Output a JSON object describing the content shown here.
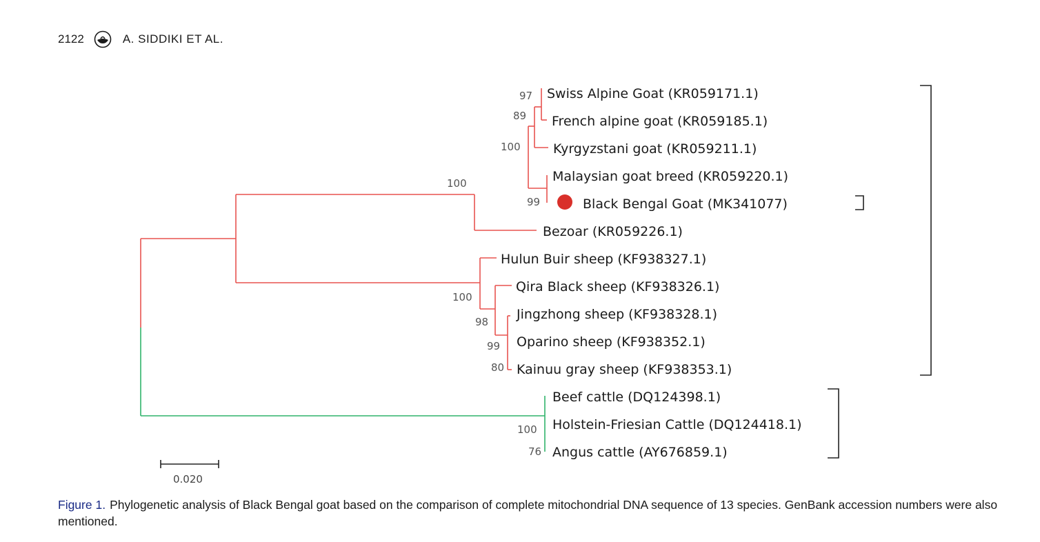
{
  "header": {
    "page_number": "2122",
    "authors": "A. SIDDIKI ET AL."
  },
  "figure": {
    "colors": {
      "clade_red": "#e8524f",
      "clade_green": "#2fb36a",
      "marker": "#d9302a",
      "bracket": "#222222"
    },
    "support_values": {
      "swiss_node": "97",
      "french_node": "89",
      "goat_cluster": "100",
      "caprini": "100",
      "black_bengal": "99",
      "sheep_root": "100",
      "sheep_inner": "98",
      "oparino_node": "99",
      "kainuu_node": "80",
      "cattle_root": "100",
      "angus_node": "76"
    },
    "scale_bar": {
      "label": "0.020"
    }
  },
  "chart_data": {
    "type": "phylogenetic-tree",
    "taxa": [
      {
        "label": "Swiss Alpine Goat (KR059171.1)",
        "clade": "red"
      },
      {
        "label": "French alpine goat (KR059185.1)",
        "clade": "red"
      },
      {
        "label": "Kyrgyzstani goat (KR059211.1)",
        "clade": "red"
      },
      {
        "label": "Malaysian goat breed (KR059220.1)",
        "clade": "red"
      },
      {
        "label": "Black Bengal Goat (MK341077)",
        "clade": "red",
        "marked": true
      },
      {
        "label": "Bezoar (KR059226.1)",
        "clade": "red"
      },
      {
        "label": "Hulun Buir sheep (KF938327.1)",
        "clade": "red"
      },
      {
        "label": "Qira Black sheep (KF938326.1)",
        "clade": "red"
      },
      {
        "label": "Jingzhong sheep (KF938328.1)",
        "clade": "red"
      },
      {
        "label": "Oparino sheep (KF938352.1)",
        "clade": "red"
      },
      {
        "label": "Kainuu gray sheep (KF938353.1)",
        "clade": "red"
      },
      {
        "label": "Beef cattle (DQ124398.1)",
        "clade": "green"
      },
      {
        "label": "Holstein-Friesian Cattle (DQ124418.1)",
        "clade": "green"
      },
      {
        "label": "Angus cattle (AY676859.1)",
        "clade": "green"
      }
    ],
    "scale_value": 0.02
  },
  "caption": {
    "label": "Figure 1.",
    "text": "Phylogenetic analysis of Black Bengal goat based on the comparison of complete mitochondrial DNA sequence of 13 species. GenBank accession numbers were also mentioned."
  }
}
